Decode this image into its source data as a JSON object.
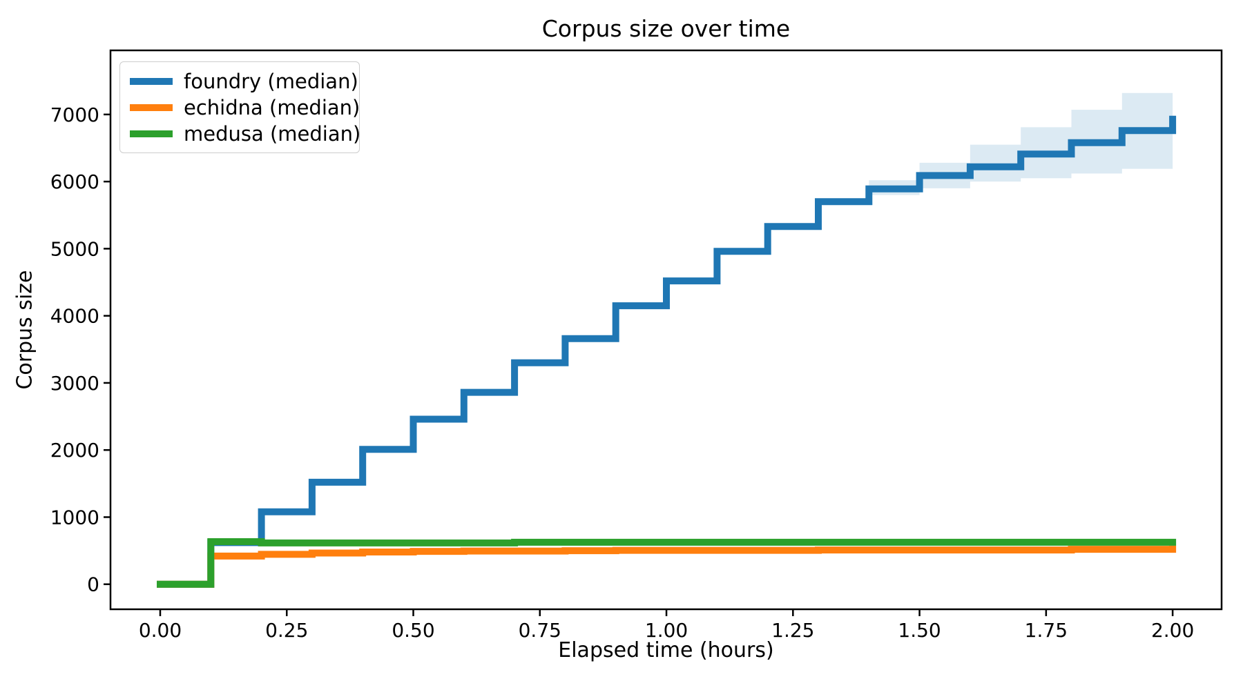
{
  "figure": {
    "title": "Corpus size over time"
  },
  "axes": {
    "xlabel": "Elapsed time (hours)",
    "ylabel": "Corpus size",
    "x_ticks": [
      {
        "value": 0.0,
        "label": "0.00"
      },
      {
        "value": 0.25,
        "label": "0.25"
      },
      {
        "value": 0.5,
        "label": "0.50"
      },
      {
        "value": 0.75,
        "label": "0.75"
      },
      {
        "value": 1.0,
        "label": "1.00"
      },
      {
        "value": 1.25,
        "label": "1.25"
      },
      {
        "value": 1.5,
        "label": "1.50"
      },
      {
        "value": 1.75,
        "label": "1.75"
      },
      {
        "value": 2.0,
        "label": "2.00"
      }
    ],
    "y_ticks": [
      {
        "value": 0,
        "label": "0"
      },
      {
        "value": 1000,
        "label": "1000"
      },
      {
        "value": 2000,
        "label": "2000"
      },
      {
        "value": 3000,
        "label": "3000"
      },
      {
        "value": 4000,
        "label": "4000"
      },
      {
        "value": 5000,
        "label": "5000"
      },
      {
        "value": 6000,
        "label": "6000"
      },
      {
        "value": 7000,
        "label": "7000"
      }
    ]
  },
  "chart_data": {
    "type": "line",
    "line_style": "step-post",
    "title": "Corpus size over time",
    "xlabel": "Elapsed time (hours)",
    "ylabel": "Corpus size",
    "xlim": [
      -0.0982,
      2.0967
    ],
    "ylim": [
      -373,
      7955
    ],
    "grid": false,
    "legend_position": "upper left",
    "x": [
      0.0,
      0.1,
      0.2,
      0.3,
      0.4,
      0.5,
      0.6,
      0.7,
      0.8,
      0.9,
      1.0,
      1.1,
      1.2,
      1.3,
      1.4,
      1.5,
      1.6,
      1.7,
      1.8,
      1.9,
      2.0
    ],
    "series": [
      {
        "name": "foundry (median)",
        "color": "#1f77b4",
        "values": [
          0,
          620,
          1080,
          1520,
          2010,
          2460,
          2860,
          3300,
          3660,
          4150,
          4520,
          4960,
          5330,
          5700,
          5890,
          6090,
          6220,
          6410,
          6580,
          6760,
          6930
        ]
      },
      {
        "name": "echidna (median)",
        "color": "#ff7f0e",
        "values": [
          0,
          420,
          445,
          465,
          480,
          490,
          495,
          495,
          500,
          505,
          505,
          505,
          505,
          510,
          510,
          510,
          510,
          510,
          520,
          520,
          525
        ]
      },
      {
        "name": "medusa (median)",
        "color": "#2ca02c",
        "values": [
          0,
          635,
          615,
          615,
          615,
          615,
          615,
          625,
          625,
          625,
          625,
          625,
          625,
          625,
          625,
          625,
          625,
          625,
          625,
          625,
          625
        ]
      }
    ],
    "band": {
      "series": "foundry (median)",
      "color": "#1f77b4",
      "opacity": 0.155,
      "t_start": [
        1.4,
        1.5,
        1.6,
        1.7,
        1.8,
        1.9
      ],
      "t_end": [
        1.5,
        1.6,
        1.7,
        1.8,
        1.9,
        2.0
      ],
      "lo": [
        5800,
        5900,
        6000,
        6050,
        6120,
        6190
      ],
      "hi": [
        6020,
        6280,
        6550,
        6810,
        7070,
        7320
      ]
    }
  }
}
